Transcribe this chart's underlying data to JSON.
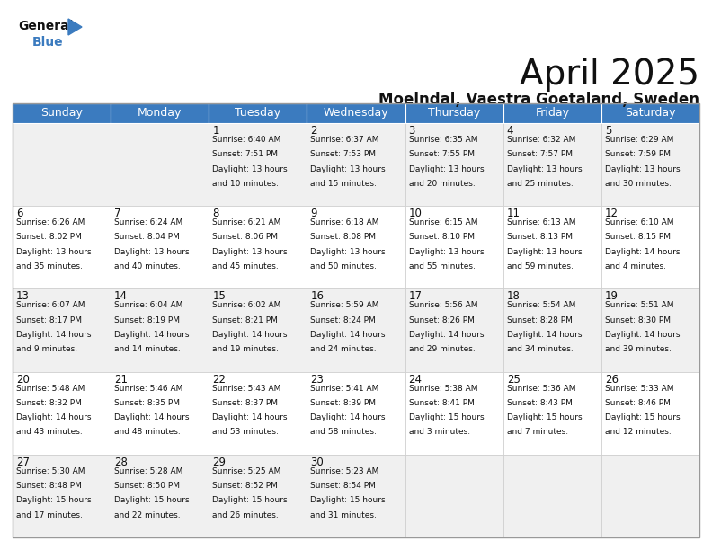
{
  "title": "April 2025",
  "subtitle": "Moelndal, Vaestra Goetaland, Sweden",
  "header_color": "#3b7bbf",
  "header_text_color": "#ffffff",
  "border_color": "#cccccc",
  "days_of_week": [
    "Sunday",
    "Monday",
    "Tuesday",
    "Wednesday",
    "Thursday",
    "Friday",
    "Saturday"
  ],
  "title_fontsize": 28,
  "subtitle_fontsize": 12,
  "day_header_fontsize": 9,
  "cell_text_fontsize": 6.5,
  "day_num_fontsize": 8.5,
  "logo_general_fontsize": 10,
  "logo_blue_fontsize": 10,
  "calendar": [
    [
      {
        "day": null,
        "sunrise": null,
        "sunset": null,
        "daylight": null
      },
      {
        "day": null,
        "sunrise": null,
        "sunset": null,
        "daylight": null
      },
      {
        "day": 1,
        "sunrise": "6:40 AM",
        "sunset": "7:51 PM",
        "daylight": "13 hours and 10 minutes."
      },
      {
        "day": 2,
        "sunrise": "6:37 AM",
        "sunset": "7:53 PM",
        "daylight": "13 hours and 15 minutes."
      },
      {
        "day": 3,
        "sunrise": "6:35 AM",
        "sunset": "7:55 PM",
        "daylight": "13 hours and 20 minutes."
      },
      {
        "day": 4,
        "sunrise": "6:32 AM",
        "sunset": "7:57 PM",
        "daylight": "13 hours and 25 minutes."
      },
      {
        "day": 5,
        "sunrise": "6:29 AM",
        "sunset": "7:59 PM",
        "daylight": "13 hours and 30 minutes."
      }
    ],
    [
      {
        "day": 6,
        "sunrise": "6:26 AM",
        "sunset": "8:02 PM",
        "daylight": "13 hours and 35 minutes."
      },
      {
        "day": 7,
        "sunrise": "6:24 AM",
        "sunset": "8:04 PM",
        "daylight": "13 hours and 40 minutes."
      },
      {
        "day": 8,
        "sunrise": "6:21 AM",
        "sunset": "8:06 PM",
        "daylight": "13 hours and 45 minutes."
      },
      {
        "day": 9,
        "sunrise": "6:18 AM",
        "sunset": "8:08 PM",
        "daylight": "13 hours and 50 minutes."
      },
      {
        "day": 10,
        "sunrise": "6:15 AM",
        "sunset": "8:10 PM",
        "daylight": "13 hours and 55 minutes."
      },
      {
        "day": 11,
        "sunrise": "6:13 AM",
        "sunset": "8:13 PM",
        "daylight": "13 hours and 59 minutes."
      },
      {
        "day": 12,
        "sunrise": "6:10 AM",
        "sunset": "8:15 PM",
        "daylight": "14 hours and 4 minutes."
      }
    ],
    [
      {
        "day": 13,
        "sunrise": "6:07 AM",
        "sunset": "8:17 PM",
        "daylight": "14 hours and 9 minutes."
      },
      {
        "day": 14,
        "sunrise": "6:04 AM",
        "sunset": "8:19 PM",
        "daylight": "14 hours and 14 minutes."
      },
      {
        "day": 15,
        "sunrise": "6:02 AM",
        "sunset": "8:21 PM",
        "daylight": "14 hours and 19 minutes."
      },
      {
        "day": 16,
        "sunrise": "5:59 AM",
        "sunset": "8:24 PM",
        "daylight": "14 hours and 24 minutes."
      },
      {
        "day": 17,
        "sunrise": "5:56 AM",
        "sunset": "8:26 PM",
        "daylight": "14 hours and 29 minutes."
      },
      {
        "day": 18,
        "sunrise": "5:54 AM",
        "sunset": "8:28 PM",
        "daylight": "14 hours and 34 minutes."
      },
      {
        "day": 19,
        "sunrise": "5:51 AM",
        "sunset": "8:30 PM",
        "daylight": "14 hours and 39 minutes."
      }
    ],
    [
      {
        "day": 20,
        "sunrise": "5:48 AM",
        "sunset": "8:32 PM",
        "daylight": "14 hours and 43 minutes."
      },
      {
        "day": 21,
        "sunrise": "5:46 AM",
        "sunset": "8:35 PM",
        "daylight": "14 hours and 48 minutes."
      },
      {
        "day": 22,
        "sunrise": "5:43 AM",
        "sunset": "8:37 PM",
        "daylight": "14 hours and 53 minutes."
      },
      {
        "day": 23,
        "sunrise": "5:41 AM",
        "sunset": "8:39 PM",
        "daylight": "14 hours and 58 minutes."
      },
      {
        "day": 24,
        "sunrise": "5:38 AM",
        "sunset": "8:41 PM",
        "daylight": "15 hours and 3 minutes."
      },
      {
        "day": 25,
        "sunrise": "5:36 AM",
        "sunset": "8:43 PM",
        "daylight": "15 hours and 7 minutes."
      },
      {
        "day": 26,
        "sunrise": "5:33 AM",
        "sunset": "8:46 PM",
        "daylight": "15 hours and 12 minutes."
      }
    ],
    [
      {
        "day": 27,
        "sunrise": "5:30 AM",
        "sunset": "8:48 PM",
        "daylight": "15 hours and 17 minutes."
      },
      {
        "day": 28,
        "sunrise": "5:28 AM",
        "sunset": "8:50 PM",
        "daylight": "15 hours and 22 minutes."
      },
      {
        "day": 29,
        "sunrise": "5:25 AM",
        "sunset": "8:52 PM",
        "daylight": "15 hours and 26 minutes."
      },
      {
        "day": 30,
        "sunrise": "5:23 AM",
        "sunset": "8:54 PM",
        "daylight": "15 hours and 31 minutes."
      },
      {
        "day": null,
        "sunrise": null,
        "sunset": null,
        "daylight": null
      },
      {
        "day": null,
        "sunrise": null,
        "sunset": null,
        "daylight": null
      },
      {
        "day": null,
        "sunrise": null,
        "sunset": null,
        "daylight": null
      }
    ]
  ]
}
